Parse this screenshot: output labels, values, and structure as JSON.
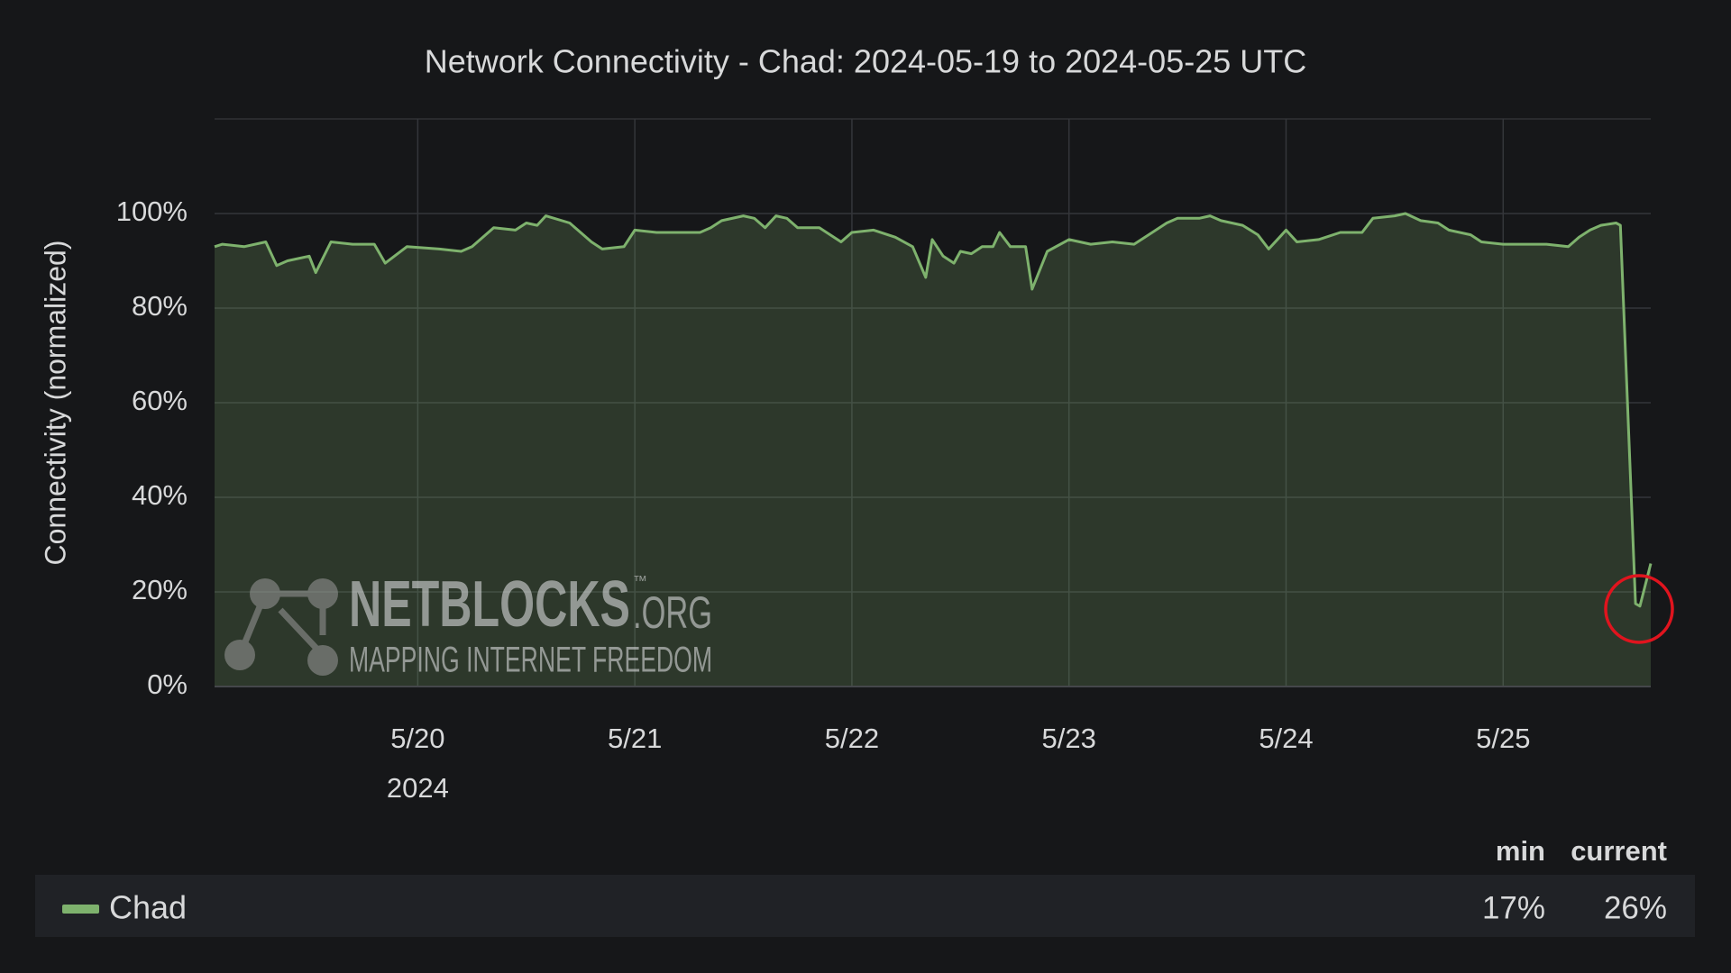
{
  "chart_data": {
    "type": "area",
    "title": "Network Connectivity - Chad: 2024-05-19 to 2024-05-25 UTC",
    "y_label": "Connectivity (normalized)",
    "xlim": [
      19.064,
      25.68
    ],
    "xticks": [
      {
        "value": 20,
        "label": "5/20"
      },
      {
        "value": 21,
        "label": "5/21"
      },
      {
        "value": 22,
        "label": "5/22"
      },
      {
        "value": 23,
        "label": "5/23"
      },
      {
        "value": 24,
        "label": "5/24"
      },
      {
        "value": 25,
        "label": "5/25"
      }
    ],
    "x_year_label": "2024",
    "ylim": [
      0,
      120
    ],
    "yticks": [
      {
        "value": 0,
        "label": "0%"
      },
      {
        "value": 20,
        "label": "20%"
      },
      {
        "value": 40,
        "label": "40%"
      },
      {
        "value": 60,
        "label": "60%"
      },
      {
        "value": 80,
        "label": "80%"
      },
      {
        "value": 100,
        "label": "100%"
      }
    ],
    "grid": true,
    "x": [
      19.064,
      19.1,
      19.2,
      19.3,
      19.35,
      19.4,
      19.5,
      19.53,
      19.6,
      19.7,
      19.8,
      19.85,
      19.95,
      20.1,
      20.2,
      20.25,
      20.35,
      20.45,
      20.5,
      20.55,
      20.59,
      20.7,
      20.8,
      20.85,
      20.95,
      21.0,
      21.1,
      21.3,
      21.35,
      21.4,
      21.5,
      21.55,
      21.6,
      21.65,
      21.7,
      21.75,
      21.85,
      21.95,
      22.0,
      22.1,
      22.2,
      22.28,
      22.34,
      22.37,
      22.42,
      22.47,
      22.5,
      22.55,
      22.6,
      22.65,
      22.68,
      22.73,
      22.8,
      22.83,
      22.9,
      23.0,
      23.1,
      23.2,
      23.3,
      23.35,
      23.45,
      23.5,
      23.6,
      23.65,
      23.7,
      23.8,
      23.87,
      23.92,
      23.97,
      24.0,
      24.05,
      24.15,
      24.25,
      24.35,
      24.4,
      24.5,
      24.55,
      24.62,
      24.7,
      24.75,
      24.85,
      24.9,
      25.0,
      25.2,
      25.3,
      25.35,
      25.4,
      25.45,
      25.52,
      25.54,
      25.61,
      25.63,
      25.68
    ],
    "series": [
      {
        "name": "Chad",
        "color": "#7eb26d",
        "values": [
          93,
          93.5,
          93,
          94,
          89,
          90,
          91,
          87.5,
          94,
          93.5,
          93.5,
          89.5,
          93,
          92.5,
          92,
          93,
          97,
          96.5,
          98,
          97.5,
          99.5,
          98,
          94,
          92.5,
          93,
          96.5,
          96,
          96,
          97,
          98.5,
          99.5,
          99,
          97,
          99.5,
          99,
          97,
          97,
          94,
          96,
          96.5,
          95,
          93,
          86.5,
          94.5,
          91,
          89.5,
          92,
          91.5,
          93,
          93,
          96,
          93,
          93,
          84,
          92,
          94.5,
          93.5,
          94,
          93.5,
          95,
          98,
          99,
          99,
          99.5,
          98.5,
          97.5,
          95.5,
          92.5,
          95,
          96.5,
          94,
          94.5,
          96,
          96,
          99,
          99.5,
          100,
          98.5,
          98,
          96.5,
          95.5,
          94,
          93.5,
          93.5,
          93,
          95,
          96.5,
          97.5,
          98,
          97.5,
          17.5,
          17,
          26
        ],
        "stats": [
          17,
          26
        ],
        "stats_labels": [
          "17%",
          "26%"
        ]
      }
    ],
    "legend_columns": [
      "min",
      "current"
    ],
    "watermark": {
      "name": "NETBLOCKS",
      "tm": "™",
      "suffix": ".ORG",
      "tagline": "MAPPING INTERNET FREEDOM"
    }
  }
}
